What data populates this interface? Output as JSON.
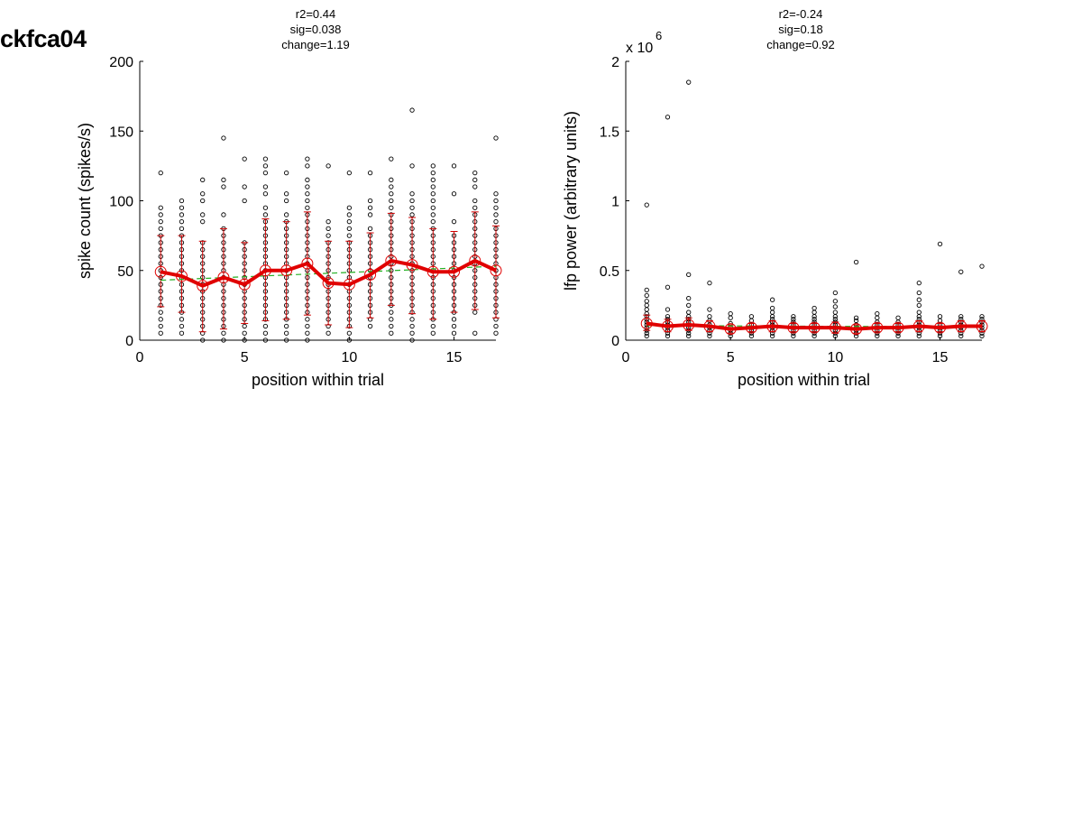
{
  "figure_title": "ckfca04",
  "chart_data": [
    {
      "type": "scatter",
      "stats": [
        "r2=0.44",
        "sig=0.038",
        "change=1.19"
      ],
      "xlabel": "position within trial",
      "ylabel": "spike count (spikes/s)",
      "xlim": [
        0,
        17
      ],
      "ylim": [
        0,
        200
      ],
      "xticks": [
        0,
        5,
        10,
        15
      ],
      "yticks": [
        0,
        50,
        100,
        150,
        200
      ],
      "ytick_labels": [
        "0",
        "50",
        "100",
        "150",
        "200"
      ],
      "exponent_label": "",
      "x": [
        1,
        2,
        3,
        4,
        5,
        6,
        7,
        8,
        9,
        10,
        11,
        12,
        13,
        14,
        15,
        16,
        17
      ],
      "mean": [
        49,
        46,
        39,
        45,
        40,
        50,
        50,
        55,
        41,
        40,
        47,
        57,
        54,
        49,
        49,
        57,
        50
      ],
      "sd_low": [
        24,
        20,
        6,
        8,
        12,
        14,
        15,
        18,
        11,
        9,
        16,
        25,
        19,
        15,
        20,
        22,
        16
      ],
      "sd_high": [
        75,
        75,
        71,
        80,
        70,
        87,
        85,
        92,
        71,
        71,
        77,
        91,
        88,
        80,
        78,
        92,
        82
      ],
      "fit": {
        "x": [
          1,
          17
        ],
        "y": [
          43,
          53
        ]
      },
      "points": [
        [
          5,
          10,
          15,
          20,
          25,
          30,
          35,
          40,
          45,
          50,
          55,
          60,
          65,
          70,
          75,
          80,
          85,
          90,
          95,
          120
        ],
        [
          5,
          10,
          15,
          20,
          25,
          30,
          35,
          40,
          45,
          50,
          55,
          60,
          65,
          70,
          75,
          80,
          85,
          90,
          95,
          100
        ],
        [
          0,
          5,
          10,
          15,
          20,
          25,
          30,
          35,
          40,
          45,
          50,
          55,
          60,
          65,
          70,
          85,
          90,
          100,
          105,
          115
        ],
        [
          0,
          5,
          10,
          15,
          20,
          25,
          30,
          35,
          40,
          45,
          50,
          55,
          60,
          65,
          70,
          75,
          80,
          90,
          110,
          115,
          145
        ],
        [
          0,
          5,
          10,
          15,
          20,
          25,
          30,
          35,
          40,
          45,
          50,
          55,
          60,
          65,
          70,
          100,
          110,
          130
        ],
        [
          0,
          5,
          10,
          15,
          20,
          25,
          30,
          35,
          40,
          45,
          50,
          55,
          60,
          65,
          70,
          75,
          80,
          85,
          90,
          95,
          105,
          110,
          120,
          125,
          130
        ],
        [
          0,
          5,
          10,
          15,
          20,
          25,
          30,
          35,
          40,
          45,
          50,
          55,
          60,
          65,
          70,
          75,
          80,
          85,
          90,
          100,
          105,
          120
        ],
        [
          0,
          5,
          10,
          15,
          20,
          25,
          30,
          35,
          40,
          45,
          50,
          55,
          60,
          65,
          70,
          75,
          80,
          85,
          90,
          95,
          100,
          105,
          110,
          115,
          125,
          130
        ],
        [
          5,
          10,
          15,
          20,
          25,
          30,
          35,
          40,
          45,
          50,
          55,
          60,
          65,
          70,
          75,
          80,
          85,
          125
        ],
        [
          0,
          5,
          10,
          15,
          20,
          25,
          30,
          35,
          40,
          45,
          50,
          55,
          60,
          65,
          70,
          75,
          80,
          85,
          90,
          95,
          120
        ],
        [
          10,
          15,
          20,
          25,
          30,
          35,
          40,
          45,
          50,
          55,
          60,
          65,
          70,
          75,
          80,
          90,
          95,
          100,
          120
        ],
        [
          5,
          10,
          15,
          20,
          25,
          30,
          35,
          40,
          45,
          50,
          55,
          60,
          65,
          70,
          75,
          80,
          85,
          90,
          95,
          100,
          105,
          110,
          115,
          130
        ],
        [
          0,
          5,
          10,
          15,
          20,
          25,
          30,
          35,
          40,
          45,
          50,
          55,
          60,
          65,
          70,
          75,
          80,
          85,
          90,
          95,
          100,
          105,
          125,
          165
        ],
        [
          5,
          10,
          15,
          20,
          25,
          30,
          35,
          40,
          45,
          50,
          55,
          60,
          65,
          70,
          75,
          80,
          85,
          90,
          95,
          100,
          105,
          110,
          115,
          120,
          125
        ],
        [
          5,
          10,
          15,
          20,
          25,
          30,
          35,
          40,
          45,
          50,
          55,
          60,
          65,
          70,
          75,
          85,
          105,
          125
        ],
        [
          5,
          20,
          25,
          30,
          35,
          40,
          45,
          50,
          55,
          60,
          65,
          70,
          75,
          80,
          85,
          90,
          95,
          100,
          110,
          115,
          120
        ],
        [
          5,
          10,
          15,
          20,
          25,
          30,
          35,
          40,
          45,
          50,
          55,
          60,
          65,
          70,
          75,
          80,
          85,
          90,
          95,
          100,
          105,
          145
        ]
      ]
    },
    {
      "type": "scatter",
      "stats": [
        "r2=-0.24",
        "sig=0.18",
        "change=0.92"
      ],
      "xlabel": "position within trial",
      "ylabel": "lfp power (arbitrary units)",
      "xlim": [
        0,
        17
      ],
      "ylim": [
        0,
        2
      ],
      "xticks": [
        0,
        5,
        10,
        15
      ],
      "yticks": [
        0,
        0.5,
        1,
        1.5,
        2
      ],
      "ytick_labels": [
        "0",
        "0.5",
        "1",
        "1.5",
        "2"
      ],
      "exponent_label": "x 10",
      "exponent_power": "6",
      "x": [
        1,
        2,
        3,
        4,
        5,
        6,
        7,
        8,
        9,
        10,
        11,
        12,
        13,
        14,
        15,
        16,
        17
      ],
      "mean": [
        0.12,
        0.1,
        0.11,
        0.1,
        0.08,
        0.09,
        0.1,
        0.09,
        0.09,
        0.09,
        0.08,
        0.09,
        0.09,
        0.1,
        0.09,
        0.1,
        0.1
      ],
      "sd_low": [
        0.07,
        0.06,
        0.07,
        0.06,
        0.05,
        0.06,
        0.06,
        0.06,
        0.06,
        0.05,
        0.05,
        0.06,
        0.06,
        0.06,
        0.06,
        0.06,
        0.06
      ],
      "sd_high": [
        0.18,
        0.15,
        0.16,
        0.14,
        0.11,
        0.12,
        0.14,
        0.12,
        0.12,
        0.13,
        0.11,
        0.12,
        0.12,
        0.14,
        0.12,
        0.14,
        0.14
      ],
      "fit": {
        "x": [
          1,
          17
        ],
        "y": [
          0.105,
          0.095
        ]
      },
      "points": [
        [
          0.03,
          0.05,
          0.07,
          0.09,
          0.11,
          0.13,
          0.15,
          0.17,
          0.19,
          0.22,
          0.25,
          0.28,
          0.32,
          0.36,
          0.97
        ],
        [
          0.03,
          0.05,
          0.07,
          0.09,
          0.11,
          0.13,
          0.15,
          0.17,
          0.22,
          0.38,
          1.6
        ],
        [
          0.03,
          0.05,
          0.07,
          0.09,
          0.11,
          0.13,
          0.15,
          0.17,
          0.2,
          0.25,
          0.3,
          0.47,
          1.85
        ],
        [
          0.03,
          0.05,
          0.07,
          0.09,
          0.11,
          0.14,
          0.17,
          0.22,
          0.41
        ],
        [
          0.03,
          0.05,
          0.07,
          0.09,
          0.12,
          0.16,
          0.19
        ],
        [
          0.03,
          0.05,
          0.07,
          0.09,
          0.11,
          0.14,
          0.17
        ],
        [
          0.03,
          0.05,
          0.07,
          0.09,
          0.11,
          0.13,
          0.15,
          0.17,
          0.2,
          0.23,
          0.29
        ],
        [
          0.03,
          0.05,
          0.07,
          0.09,
          0.11,
          0.13,
          0.15,
          0.17
        ],
        [
          0.03,
          0.05,
          0.07,
          0.09,
          0.11,
          0.13,
          0.15,
          0.17,
          0.2,
          0.23
        ],
        [
          0.03,
          0.05,
          0.07,
          0.09,
          0.11,
          0.13,
          0.15,
          0.17,
          0.2,
          0.24,
          0.28,
          0.34
        ],
        [
          0.03,
          0.05,
          0.07,
          0.09,
          0.11,
          0.14,
          0.16,
          0.56
        ],
        [
          0.03,
          0.05,
          0.07,
          0.09,
          0.11,
          0.13,
          0.16,
          0.19
        ],
        [
          0.03,
          0.05,
          0.07,
          0.09,
          0.11,
          0.13,
          0.16
        ],
        [
          0.03,
          0.05,
          0.07,
          0.09,
          0.11,
          0.13,
          0.15,
          0.17,
          0.2,
          0.25,
          0.29,
          0.34,
          0.41
        ],
        [
          0.03,
          0.05,
          0.07,
          0.09,
          0.11,
          0.14,
          0.17,
          0.69
        ],
        [
          0.03,
          0.05,
          0.07,
          0.09,
          0.11,
          0.13,
          0.15,
          0.17,
          0.49
        ],
        [
          0.03,
          0.05,
          0.07,
          0.09,
          0.11,
          0.13,
          0.15,
          0.17,
          0.53
        ]
      ]
    }
  ]
}
